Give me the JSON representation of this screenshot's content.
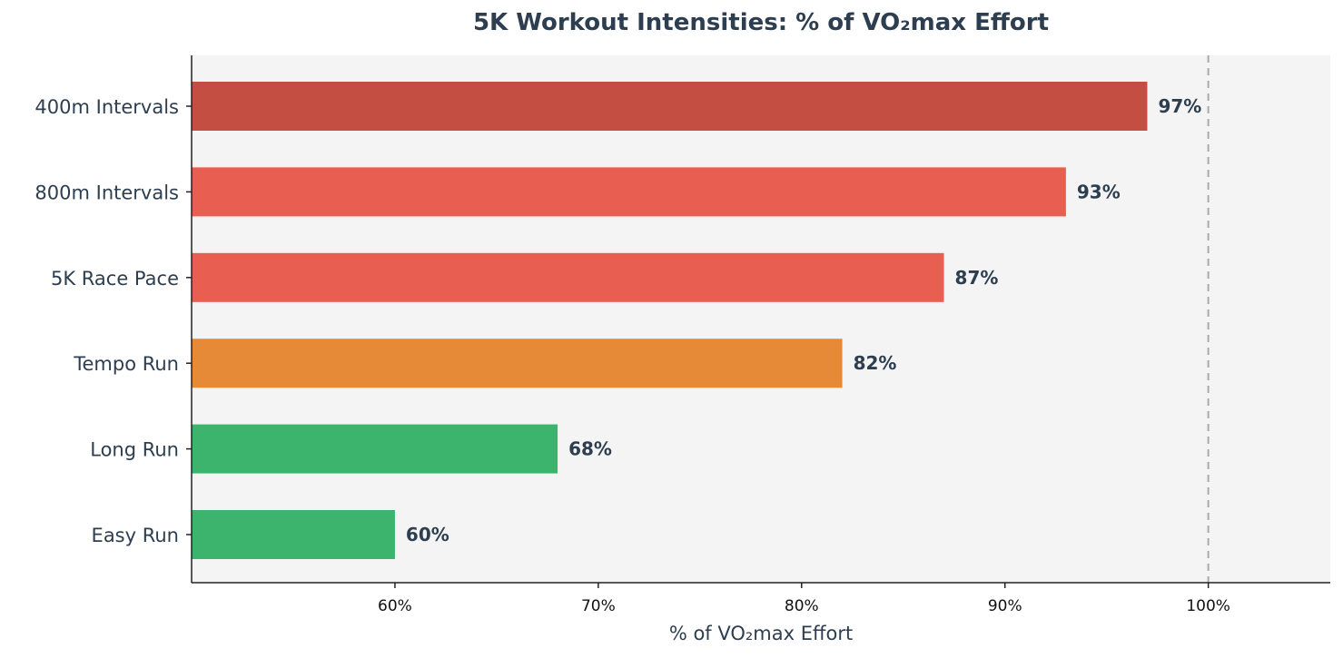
{
  "chart_data": {
    "type": "bar",
    "orientation": "horizontal",
    "title": "5K Workout Intensities: % of VO₂max Effort",
    "xlabel": "% of VO₂max Effort",
    "ylabel": "",
    "xlim": [
      50,
      106
    ],
    "categories": [
      "400m Intervals",
      "800m Intervals",
      "5K Race Pace",
      "Tempo Run",
      "Long Run",
      "Easy Run"
    ],
    "values": [
      97,
      93,
      87,
      82,
      68,
      60
    ],
    "value_labels": [
      "97%",
      "93%",
      "87%",
      "82%",
      "68%",
      "60%"
    ],
    "bar_colors": [
      "#c44e41",
      "#e85e50",
      "#e85e50",
      "#e68a38",
      "#3cb46e",
      "#3cb46e"
    ],
    "x_ticks": [
      60,
      70,
      80,
      90,
      100
    ],
    "x_tick_labels": [
      "60%",
      "70%",
      "80%",
      "90%",
      "100%"
    ],
    "reference_line": {
      "x": 100,
      "style": "dashed",
      "color": "#aaaaaa"
    },
    "plot_background": "#f4f4f4",
    "grid": false,
    "legend": "none"
  }
}
